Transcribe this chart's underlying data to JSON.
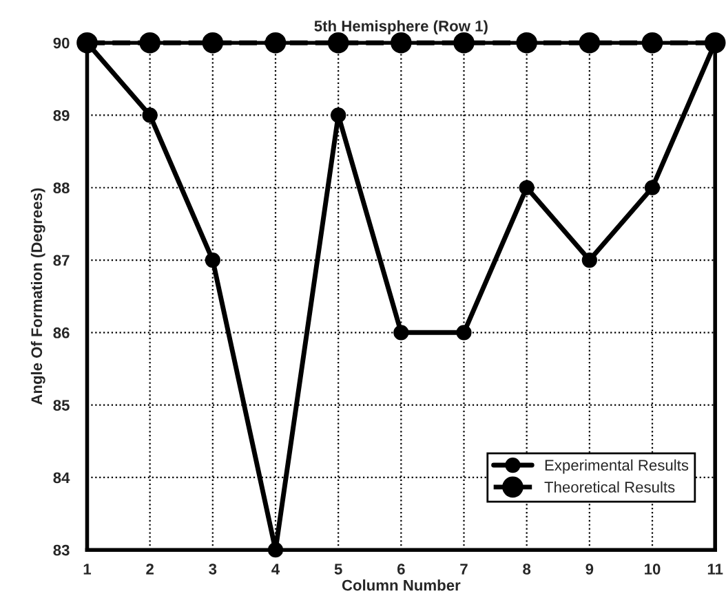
{
  "chart_data": {
    "type": "line",
    "title": "5th Hemisphere (Row 1)",
    "xlabel": "Column Number",
    "ylabel": "Angle Of Formation (Degrees)",
    "x": [
      1,
      2,
      3,
      4,
      5,
      6,
      7,
      8,
      9,
      10,
      11
    ],
    "series": [
      {
        "name": "Experimental Results",
        "color": "#000000",
        "values": [
          90,
          89,
          87,
          83,
          89,
          86,
          86,
          88,
          87,
          88,
          90
        ],
        "line_style": "solid",
        "marker": "circle"
      },
      {
        "name": "Theoretical Results",
        "color": "#000000",
        "values": [
          90,
          90,
          90,
          90,
          90,
          90,
          90,
          90,
          90,
          90,
          90
        ],
        "line_style": "dashed",
        "marker": "circle"
      }
    ],
    "xlim": [
      1,
      11
    ],
    "xticks": [
      1,
      2,
      3,
      4,
      5,
      6,
      7,
      8,
      9,
      10,
      11
    ],
    "ylim": [
      83,
      90
    ],
    "yticks": [
      83,
      84,
      85,
      86,
      87,
      88,
      89,
      90
    ],
    "grid": true,
    "legend": "bottom right"
  }
}
